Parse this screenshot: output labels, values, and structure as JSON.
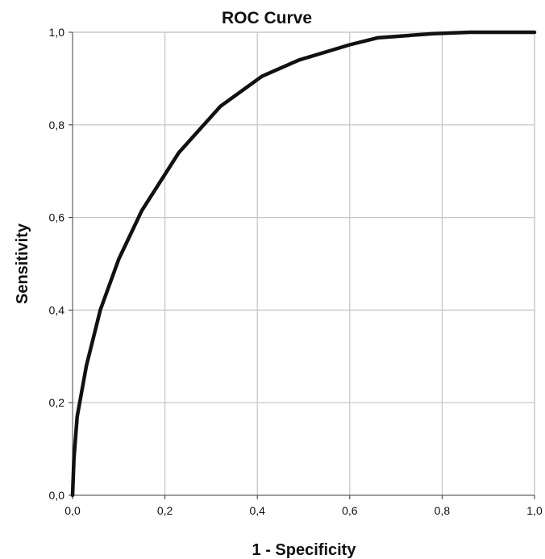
{
  "chart_data": {
    "type": "line",
    "title": "ROC Curve",
    "xlabel": "1 - Specificity",
    "ylabel": "Sensitivity",
    "xlim": [
      0,
      1
    ],
    "ylim": [
      0,
      1
    ],
    "x_ticks": [
      "0,0",
      "0,2",
      "0,4",
      "0,6",
      "0,8",
      "1,0"
    ],
    "y_ticks": [
      "0,0",
      "0,2",
      "0,4",
      "0,6",
      "0,8",
      "1,0"
    ],
    "x_tick_values": [
      0,
      0.2,
      0.4,
      0.6,
      0.8,
      1.0
    ],
    "y_tick_values": [
      0,
      0.2,
      0.4,
      0.6,
      0.8,
      1.0
    ],
    "grid": true,
    "legend": "none",
    "series": [
      {
        "color": "#111111",
        "x": [
          0.0,
          0.003,
          0.01,
          0.03,
          0.06,
          0.1,
          0.15,
          0.23,
          0.32,
          0.41,
          0.49,
          0.55,
          0.6,
          0.66,
          0.78,
          0.86,
          1.0
        ],
        "y": [
          0.0,
          0.08,
          0.17,
          0.28,
          0.4,
          0.51,
          0.615,
          0.74,
          0.84,
          0.905,
          0.94,
          0.958,
          0.973,
          0.988,
          0.997,
          1.0,
          1.0
        ]
      }
    ],
    "colors": {
      "background": "#ffffff",
      "plot_background": "#ffffff",
      "grid": "#c4c4c4",
      "frame": "#c4c4c4",
      "line": "#111111",
      "text": "#111111"
    }
  }
}
